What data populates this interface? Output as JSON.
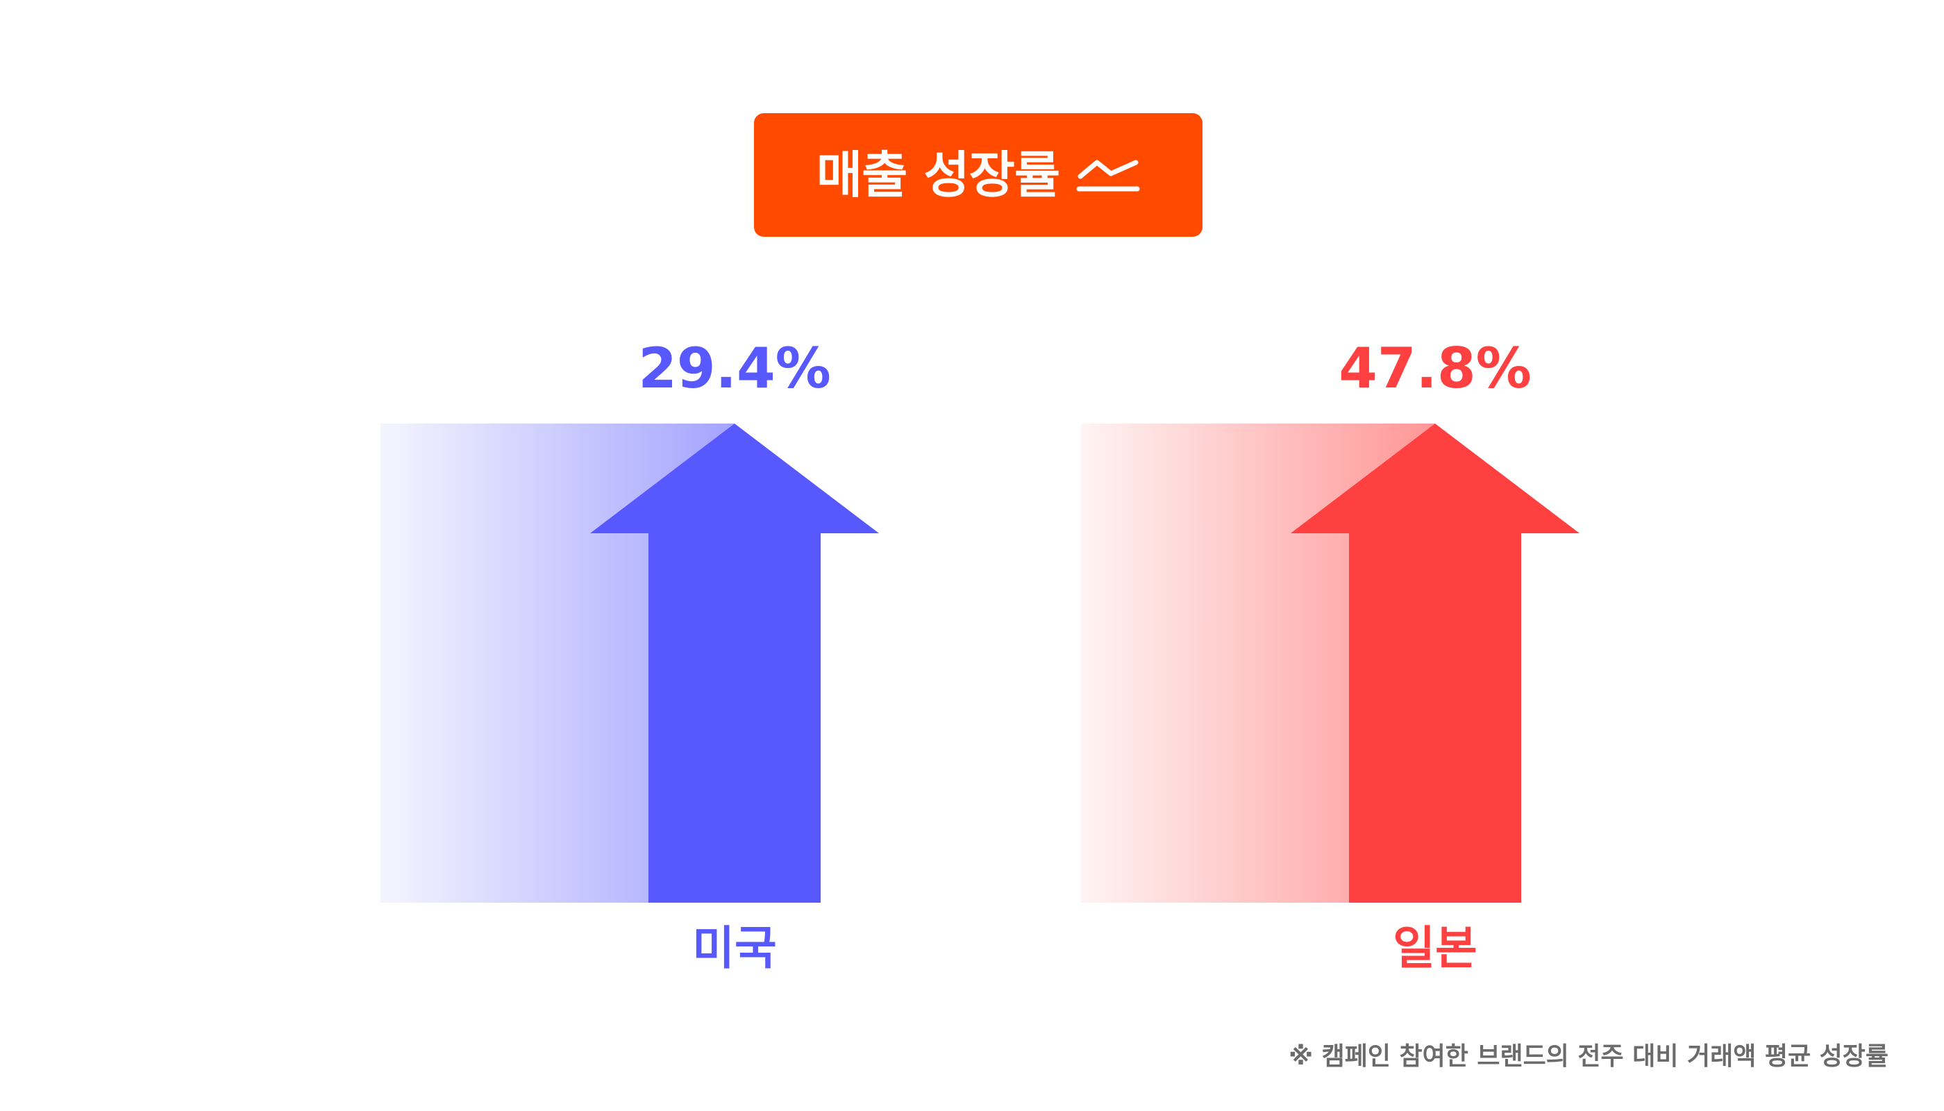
{
  "title": {
    "text": "매출 성장률",
    "icon": "trend-up-icon",
    "background": "#FF4A00"
  },
  "footnote": "※ 캠페인 참여한 브랜드의 전주 대비 거래액 평균 성장률",
  "chart_data": {
    "type": "bar",
    "title": "매출 성장률",
    "categories": [
      "미국",
      "일본"
    ],
    "values": [
      29.4,
      47.8
    ],
    "value_labels": [
      "29.4%",
      "47.8%"
    ],
    "colors": [
      "#5858FF",
      "#FF4040"
    ],
    "xlabel": "",
    "ylabel": "",
    "grid": false,
    "legend": "none"
  }
}
